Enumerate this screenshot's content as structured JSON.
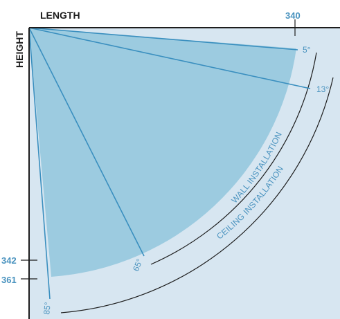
{
  "axes": {
    "x_label": "LENGTH",
    "y_label": "HEIGHT",
    "x_tick": "340",
    "y_ticks": [
      "342",
      "361"
    ]
  },
  "angles": [
    {
      "label": "5°",
      "degrees": 5
    },
    {
      "label": "13°",
      "degrees": 13
    },
    {
      "label": "65°",
      "degrees": 65
    },
    {
      "label": "85°",
      "degrees": 85
    }
  ],
  "arcs": {
    "wall": "WALL INSTALLATION",
    "ceiling": "CEILING INSTALLATION"
  },
  "colors": {
    "background_panel": "#d7e6f1",
    "coverage_fill": "#9ccbe0",
    "beam_line": "#3a8fbf",
    "accent_text": "#4a93bf",
    "axis": "#1d1d1d"
  }
}
